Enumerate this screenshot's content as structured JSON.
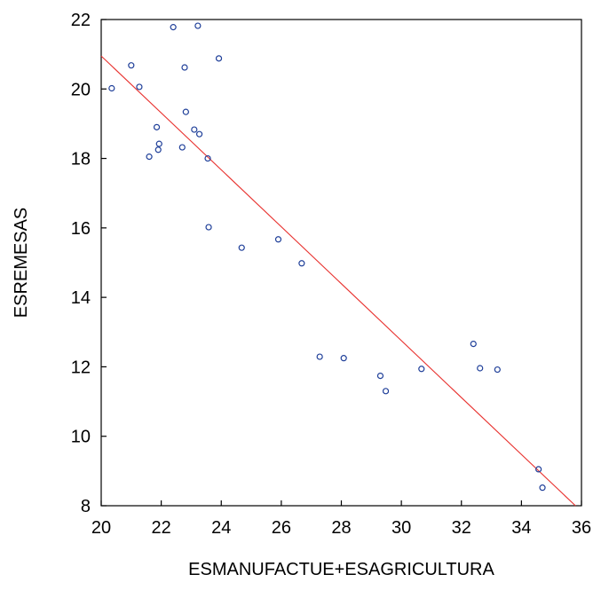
{
  "chart_data": {
    "type": "scatter",
    "title": "",
    "xlabel": "ESMANUFACTUE+ESAGRICULTURA",
    "ylabel": "ESREMESAS",
    "xlim": [
      20,
      36
    ],
    "ylim": [
      8,
      22
    ],
    "xticks": [
      20,
      22,
      24,
      26,
      28,
      30,
      32,
      34,
      36
    ],
    "yticks": [
      8,
      10,
      12,
      14,
      16,
      18,
      20,
      22
    ],
    "grid": false,
    "legend": "none",
    "colors": {
      "points": "#1f3f99",
      "fit_line": "#e8322f",
      "axes": "#000000"
    },
    "points": [
      {
        "x": 20.35,
        "y": 20.02
      },
      {
        "x": 21.0,
        "y": 20.68
      },
      {
        "x": 21.27,
        "y": 20.06
      },
      {
        "x": 21.6,
        "y": 18.05
      },
      {
        "x": 21.85,
        "y": 18.9
      },
      {
        "x": 21.9,
        "y": 18.25
      },
      {
        "x": 21.93,
        "y": 18.42
      },
      {
        "x": 22.4,
        "y": 21.78
      },
      {
        "x": 22.7,
        "y": 18.32
      },
      {
        "x": 22.78,
        "y": 20.62
      },
      {
        "x": 22.82,
        "y": 19.34
      },
      {
        "x": 23.1,
        "y": 18.83
      },
      {
        "x": 23.22,
        "y": 21.82
      },
      {
        "x": 23.27,
        "y": 18.7
      },
      {
        "x": 23.55,
        "y": 18.0
      },
      {
        "x": 23.58,
        "y": 16.02
      },
      {
        "x": 23.92,
        "y": 20.88
      },
      {
        "x": 24.68,
        "y": 15.43
      },
      {
        "x": 25.9,
        "y": 15.67
      },
      {
        "x": 26.68,
        "y": 14.98
      },
      {
        "x": 27.28,
        "y": 12.29
      },
      {
        "x": 28.08,
        "y": 12.25
      },
      {
        "x": 29.3,
        "y": 11.74
      },
      {
        "x": 29.48,
        "y": 11.3
      },
      {
        "x": 30.67,
        "y": 11.94
      },
      {
        "x": 32.4,
        "y": 12.66
      },
      {
        "x": 32.62,
        "y": 11.96
      },
      {
        "x": 33.2,
        "y": 11.92
      },
      {
        "x": 34.57,
        "y": 9.05
      },
      {
        "x": 34.7,
        "y": 8.52
      }
    ],
    "fit_line": {
      "x": [
        20,
        35.8
      ],
      "y": [
        20.95,
        8.0
      ]
    }
  }
}
